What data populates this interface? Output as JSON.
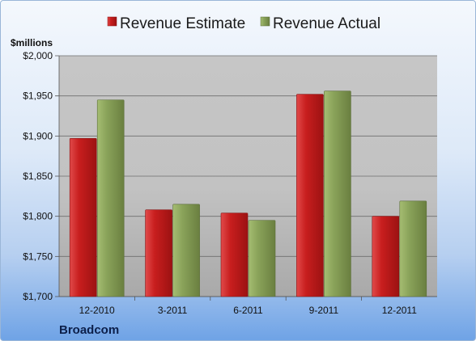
{
  "chart_data": {
    "type": "bar",
    "unit_label": "$millions",
    "company": "Broadcom",
    "categories": [
      "12-2010",
      "3-2011",
      "6-2011",
      "9-2011",
      "12-2011"
    ],
    "series": [
      {
        "name": "Revenue Estimate",
        "values": [
          1897,
          1808,
          1804,
          1952,
          1800
        ],
        "color": "#c81e1e"
      },
      {
        "name": "Revenue Actual",
        "values": [
          1945,
          1815,
          1795,
          1956,
          1819
        ],
        "color": "#8aa35a"
      }
    ],
    "ylim": [
      1700,
      2000
    ],
    "y_ticks": [
      "$1,700",
      "$1,750",
      "$1,800",
      "$1,850",
      "$1,900",
      "$1,950",
      "$2,000"
    ],
    "grid": true,
    "legend_position": "top-center"
  }
}
